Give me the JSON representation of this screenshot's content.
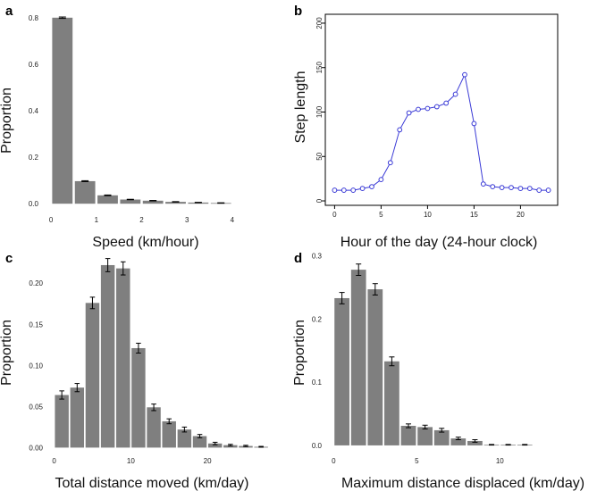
{
  "chart_data": [
    {
      "panel": "a",
      "type": "bar",
      "title": "",
      "xlabel": "Speed (km/hour)",
      "ylabel": "Proportion",
      "x": [
        0.25,
        0.75,
        1.25,
        1.75,
        2.25,
        2.75,
        3.25,
        3.75
      ],
      "values": [
        0.8,
        0.097,
        0.036,
        0.018,
        0.013,
        0.008,
        0.005,
        0.003
      ],
      "errors": [
        0.003,
        0.002,
        0.0015,
        0.001,
        0.001,
        0.001,
        0.001,
        0.001
      ],
      "bar_width": 0.45,
      "xlim": [
        -0.2,
        4.2
      ],
      "ylim": [
        -0.03,
        0.83
      ],
      "xticks": [
        0,
        1,
        2,
        3,
        4
      ],
      "yticks": [
        0.0,
        0.2,
        0.4,
        0.6,
        0.8
      ],
      "ytick_labels": [
        "0.0",
        "0.2",
        "0.4",
        "0.6",
        "0.8"
      ],
      "bar_color": "#7f7f7f"
    },
    {
      "panel": "b",
      "type": "line",
      "title": "",
      "xlabel": "Hour of the day (24-hour clock)",
      "ylabel": "Step length",
      "x": [
        0,
        1,
        2,
        3,
        4,
        5,
        6,
        7,
        8,
        9,
        10,
        11,
        12,
        13,
        14,
        15,
        16,
        17,
        18,
        19,
        20,
        21,
        22,
        23
      ],
      "values": [
        12,
        12,
        12,
        14,
        16,
        24,
        43,
        80,
        99,
        103,
        104,
        106,
        110,
        120,
        142,
        87,
        19,
        16,
        15,
        15,
        14,
        14,
        12,
        12
      ],
      "xlim": [
        -1,
        24
      ],
      "ylim": [
        -5,
        210
      ],
      "xticks": [
        0,
        5,
        10,
        15,
        20
      ],
      "yticks": [
        0,
        50,
        100,
        150,
        200
      ],
      "line_color": "#3a3ad6"
    },
    {
      "panel": "c",
      "type": "bar",
      "title": "",
      "xlabel": "Total distance moved (km/day)",
      "ylabel": "Proportion",
      "x": [
        1,
        3,
        5,
        7,
        9,
        11,
        13,
        15,
        17,
        19,
        21,
        23,
        25,
        27
      ],
      "values": [
        0.064,
        0.073,
        0.176,
        0.222,
        0.218,
        0.121,
        0.049,
        0.032,
        0.022,
        0.014,
        0.005,
        0.003,
        0.002,
        0.001
      ],
      "errors": [
        0.005,
        0.005,
        0.007,
        0.008,
        0.008,
        0.006,
        0.004,
        0.003,
        0.003,
        0.002,
        0.0015,
        0.001,
        0.0008,
        0.0005
      ],
      "bar_width": 1.8,
      "xlim": [
        -1,
        28.5
      ],
      "ylim": [
        -0.005,
        0.235
      ],
      "xticks": [
        0,
        10,
        20
      ],
      "yticks": [
        0.0,
        0.05,
        0.1,
        0.15,
        0.2
      ],
      "ytick_labels": [
        "0.00",
        "0.05",
        "0.10",
        "0.15",
        "0.20"
      ],
      "bar_color": "#7f7f7f"
    },
    {
      "panel": "d",
      "type": "bar",
      "title": "",
      "xlabel": "Maximum distance displaced (km/day)",
      "ylabel": "Proportion",
      "x": [
        0.5,
        1.5,
        2.5,
        3.5,
        4.5,
        5.5,
        6.5,
        7.5,
        8.5,
        9.5,
        10.5,
        11.5
      ],
      "values": [
        0.233,
        0.278,
        0.247,
        0.133,
        0.031,
        0.029,
        0.024,
        0.011,
        0.007,
        0.001,
        0.001,
        0.001
      ],
      "errors": [
        0.009,
        0.009,
        0.009,
        0.007,
        0.003,
        0.003,
        0.003,
        0.002,
        0.002,
        0.0005,
        0.0005,
        0.0005
      ],
      "bar_width": 0.9,
      "xlim": [
        -0.5,
        13.8
      ],
      "ylim": [
        -0.01,
        0.305
      ],
      "xticks": [
        0,
        5,
        10
      ],
      "yticks": [
        0.0,
        0.1,
        0.2,
        0.3
      ],
      "ytick_labels": [
        "0.0",
        "0.1",
        "0.2",
        "0.3"
      ],
      "bar_color": "#7f7f7f"
    }
  ]
}
